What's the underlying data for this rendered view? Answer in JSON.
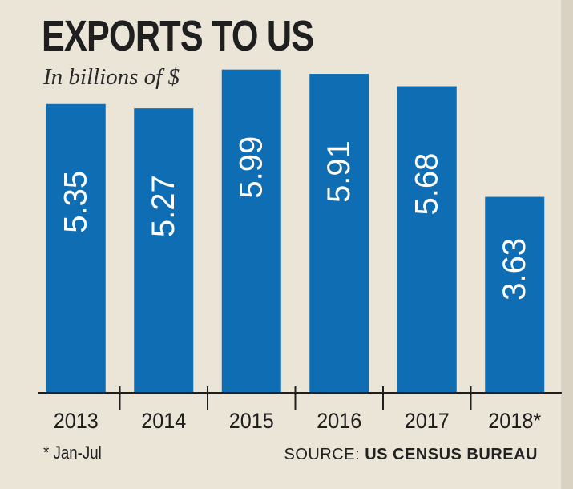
{
  "chart_data": {
    "type": "bar",
    "title": "EXPORTS TO US",
    "subtitle": "In billions of $",
    "categories": [
      "2013",
      "2014",
      "2015",
      "2016",
      "2017",
      "2018*"
    ],
    "values": [
      5.35,
      5.27,
      5.99,
      5.91,
      5.68,
      3.63
    ],
    "value_labels": [
      "5.35",
      "5.27",
      "5.99",
      "5.91",
      "5.68",
      "3.63"
    ],
    "xlabel": "",
    "ylabel": "",
    "ylim": [
      0,
      6.0
    ],
    "grid": false,
    "bar_color": "#0f6db3",
    "label_color": "#ffffff"
  },
  "footnote": "* Jan-Jul",
  "source": {
    "prefix": "SOURCE:",
    "name": "US CENSUS BUREAU"
  }
}
